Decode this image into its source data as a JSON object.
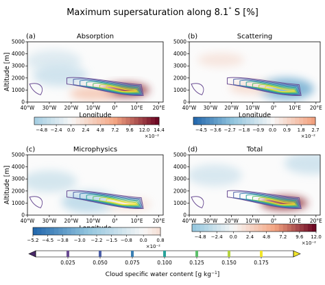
{
  "figure": {
    "title": "Maximum supersaturation along 8.1$^\\circ$S [%]",
    "title_display": "Maximum supersaturation along 8.1",
    "title_deg": "°",
    "title_suffix": " S [%]"
  },
  "axes_common": {
    "xlabel": "Longitude",
    "ylabel": "Altitude [m]",
    "xticks": [
      "40°W",
      "30°W",
      "20°W",
      "10°W",
      "0°",
      "10°E",
      "20°E"
    ],
    "xtick_values": [
      -40,
      -30,
      -20,
      -10,
      0,
      10,
      20
    ],
    "yticks": [
      "0",
      "1000",
      "2000",
      "3000",
      "4000",
      "5000"
    ],
    "ytick_values": [
      0,
      1000,
      2000,
      3000,
      4000,
      5000
    ],
    "xlim": [
      -40,
      22
    ],
    "ylim": [
      0,
      5000
    ]
  },
  "chart_data": [
    {
      "type": "heatmap",
      "panel": "(a)",
      "title": "Absorption",
      "colorbar": {
        "ticks": [
          "−4.8",
          "−2.4",
          "0.0",
          "2.4",
          "4.8",
          "7.2",
          "9.6",
          "12.0",
          "14.4"
        ],
        "tick_values": [
          -4.8,
          -2.4,
          0.0,
          2.4,
          4.8,
          7.2,
          9.6,
          12.0,
          14.4
        ],
        "range": [
          -6.0,
          14.4
        ],
        "scale": "×10⁻²",
        "cmap": "RdBu_r"
      },
      "features": [
        {
          "kind": "negative",
          "lon": -28,
          "alt": 3400,
          "value": -2.0
        },
        {
          "kind": "negative",
          "lon": -25,
          "alt": 2200,
          "value": -3.0
        },
        {
          "kind": "positive",
          "lon": 5,
          "alt": 1000,
          "value": 12.0
        },
        {
          "kind": "positive",
          "lon": -10,
          "alt": 700,
          "value": 4.0
        }
      ]
    },
    {
      "type": "heatmap",
      "panel": "(b)",
      "title": "Scattering",
      "colorbar": {
        "ticks": [
          "−4.5",
          "−3.6",
          "−2.7",
          "−1.8",
          "−0.9",
          "0.0",
          "0.9",
          "1.8",
          "2.7"
        ],
        "tick_values": [
          -4.5,
          -3.6,
          -2.7,
          -1.8,
          -0.9,
          0.0,
          0.9,
          1.8,
          2.7
        ],
        "range": [
          -5.0,
          2.7
        ],
        "scale": "×10⁻²",
        "cmap": "RdBu_r"
      },
      "features": [
        {
          "kind": "positive",
          "lon": -25,
          "alt": 3500,
          "value": 0.6
        },
        {
          "kind": "negative",
          "lon": 6,
          "alt": 1100,
          "value": -3.0
        },
        {
          "kind": "positive",
          "lon": -10,
          "alt": 1200,
          "value": 0.8
        }
      ]
    },
    {
      "type": "heatmap",
      "panel": "(c)",
      "title": "Microphysics",
      "colorbar": {
        "ticks": [
          "−5.2",
          "−4.5",
          "−3.8",
          "−3.0",
          "−2.2",
          "−1.5",
          "−0.8",
          "0.0",
          "0.8"
        ],
        "tick_values": [
          -5.2,
          -4.5,
          -3.8,
          -3.0,
          -2.2,
          -1.5,
          -0.8,
          0.0,
          0.8
        ],
        "range": [
          -5.2,
          0.8
        ],
        "scale": "×10⁻²",
        "cmap": "RdBu_r"
      },
      "features": [
        {
          "kind": "negative",
          "lon": -30,
          "alt": 2800,
          "value": -1.0
        },
        {
          "kind": "negative",
          "lon": -12,
          "alt": 1100,
          "value": -1.5
        },
        {
          "kind": "positive",
          "lon": 6,
          "alt": 900,
          "value": 0.6
        }
      ]
    },
    {
      "type": "heatmap",
      "panel": "(d)",
      "title": "Total",
      "colorbar": {
        "ticks": [
          "−4.8",
          "−2.4",
          "0.0",
          "2.4",
          "4.8",
          "7.2",
          "9.6",
          "12.0"
        ],
        "tick_values": [
          -4.8,
          -2.4,
          0.0,
          2.4,
          4.8,
          7.2,
          9.6,
          12.0
        ],
        "range": [
          -6.0,
          12.0
        ],
        "scale": "×10⁻²",
        "cmap": "RdBu_r"
      },
      "features": [
        {
          "kind": "negative",
          "lon": -28,
          "alt": 3300,
          "value": -2.0
        },
        {
          "kind": "negative",
          "lon": 18,
          "alt": 4300,
          "value": -2.5
        },
        {
          "kind": "positive",
          "lon": 5,
          "alt": 1000,
          "value": 10.0
        }
      ]
    }
  ],
  "contour_legend": {
    "label": "Cloud specific water content [g kg$^{-1}$]",
    "label_main": "Cloud specific water content [g kg",
    "label_sup": "−1",
    "label_end": "]",
    "levels": [
      "0.025",
      "0.050",
      "0.075",
      "0.100",
      "0.125",
      "0.150",
      "0.175"
    ],
    "level_values": [
      0.025,
      0.05,
      0.075,
      0.1,
      0.125,
      0.15,
      0.175
    ],
    "colors": [
      "#6a4c93",
      "#4b5fa8",
      "#3a7fb3",
      "#2aa39a",
      "#5cbf6a",
      "#b5d340",
      "#f2e52a"
    ]
  }
}
